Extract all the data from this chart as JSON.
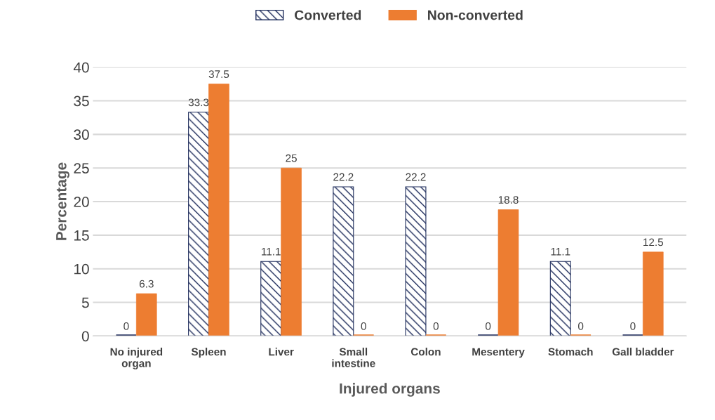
{
  "chart_data": {
    "type": "bar",
    "xlabel": "Injured organs",
    "ylabel": "Percentage",
    "categories": [
      "No injured\norgan",
      "Spleen",
      "Liver",
      "Small\nintestine",
      "Colon",
      "Mesentery",
      "Stomach",
      "Gall bladder"
    ],
    "series": [
      {
        "name": "Converted",
        "color": "#1f2d5c",
        "values": [
          0,
          33.3,
          11.1,
          22.2,
          22.2,
          0,
          11.1,
          0
        ]
      },
      {
        "name": "Non-converted",
        "color": "#ed7d31",
        "values": [
          6.3,
          37.5,
          25,
          0,
          0,
          18.8,
          0,
          12.5
        ]
      }
    ],
    "ylim": [
      0,
      40
    ],
    "yticks": [
      0,
      5,
      10,
      15,
      20,
      25,
      30,
      35,
      40
    ],
    "grid": "y",
    "legend": "top",
    "data_labels": true
  }
}
